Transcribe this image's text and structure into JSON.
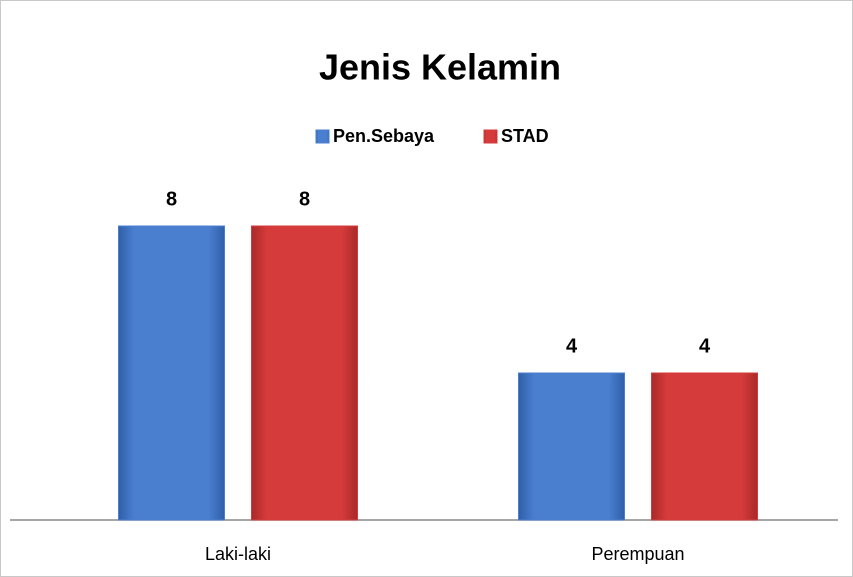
{
  "chart_data": {
    "type": "bar",
    "title": "Jenis Kelamin",
    "categories": [
      "Laki-laki",
      "Perempuan"
    ],
    "series": [
      {
        "name": "Pen.Sebaya",
        "color": "#4a7fd0",
        "values": [
          8,
          4
        ]
      },
      {
        "name": "STAD",
        "color": "#d63b3b",
        "values": [
          8,
          4
        ]
      }
    ],
    "legend": "top"
  }
}
